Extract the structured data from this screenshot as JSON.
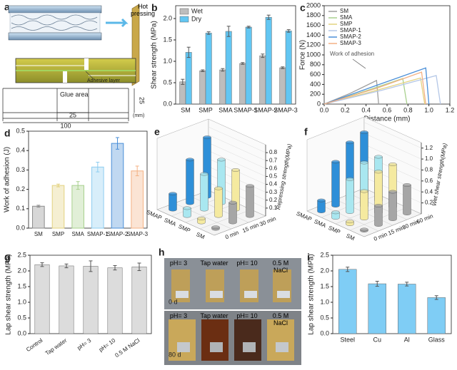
{
  "panel_a": {
    "label": "a",
    "arrow_text": "Hot pressing",
    "layer_text": "Adhesive layer",
    "glue_text": "Glue area",
    "dim_height": "25",
    "dim_glue": "25",
    "dim_length": "100",
    "unit": "(mm)"
  },
  "panel_h": {
    "label": "h",
    "columns": [
      "pH= 3",
      "Tap water",
      "pH= 10",
      "0.5 M NaCl"
    ],
    "rows": [
      "0 d",
      "80 d"
    ]
  },
  "chart_data": [
    {
      "label": "b",
      "type": "bar",
      "ylabel": "Shear strength (MPa)",
      "categories": [
        "SM",
        "SMP",
        "SMA",
        "SMAP-1",
        "SMAP-2",
        "SMAP-3"
      ],
      "ylim": [
        0,
        2.3
      ],
      "yticks": [
        {
          "value": 0,
          "label": "0.0"
        },
        0.5,
        {
          "value": 1,
          "label": "1.0"
        },
        1.5,
        {
          "value": 2,
          "label": "2.0"
        }
      ],
      "legend": "upper left",
      "series": [
        {
          "name": "Wet",
          "color": "#bdbdbd",
          "values": [
            0.52,
            0.78,
            0.8,
            0.95,
            1.13,
            0.85
          ],
          "errors": [
            0.06,
            0.02,
            0.03,
            0.02,
            0.04,
            0.02
          ]
        },
        {
          "name": "Dry",
          "color": "#62c6f2",
          "values": [
            1.21,
            1.66,
            1.7,
            1.8,
            2.03,
            1.71
          ],
          "errors": [
            0.12,
            0.03,
            0.12,
            0.02,
            0.05,
            0.03
          ]
        }
      ]
    },
    {
      "label": "c",
      "type": "line",
      "xlabel": "Distance (mm)",
      "ylabel": "Force (N)",
      "annotation": "Work of adhesion",
      "xlim": [
        0,
        1.2
      ],
      "xticks": [
        {
          "value": 0,
          "label": "0.0"
        },
        0.2,
        0.4,
        0.6,
        0.8,
        {
          "value": 1,
          "label": "1.0"
        },
        1.2
      ],
      "ylim": [
        0,
        2000
      ],
      "yticks": [
        0,
        200,
        400,
        600,
        800,
        1000,
        1200,
        1400,
        1600,
        1800,
        2000
      ],
      "legend": "upper left",
      "series": [
        {
          "name": "SM",
          "color": "#9e9e9e",
          "x": [
            0,
            0.25,
            0.5,
            0.52
          ],
          "values": [
            0,
            220,
            480,
            0
          ]
        },
        {
          "name": "SMA",
          "color": "#a8d08d",
          "x": [
            0,
            0.4,
            0.75,
            0.79
          ],
          "values": [
            0,
            270,
            520,
            0
          ]
        },
        {
          "name": "SMP",
          "color": "#e3d27f",
          "x": [
            0,
            0.45,
            0.92,
            0.96
          ],
          "values": [
            0,
            250,
            530,
            0
          ]
        },
        {
          "name": "SMAP-1",
          "color": "#b4c7e7",
          "x": [
            0,
            0.55,
            1.07,
            1.11
          ],
          "values": [
            0,
            280,
            580,
            0
          ]
        },
        {
          "name": "SMAP-2",
          "color": "#4a8fd8",
          "x": [
            0,
            0.5,
            0.97,
            1.0
          ],
          "values": [
            0,
            380,
            735,
            0
          ]
        },
        {
          "name": "SMAP-3",
          "color": "#f4b183",
          "x": [
            0,
            0.5,
            0.93,
            0.97
          ],
          "values": [
            0,
            320,
            650,
            0
          ]
        }
      ]
    },
    {
      "label": "d",
      "type": "bar",
      "ylabel": "Work of adhesion (J)",
      "categories": [
        "SM",
        "SMP",
        "SMA",
        "SMAP-1",
        "SMAP-2",
        "SMAP-3"
      ],
      "values": [
        0.113,
        0.22,
        0.22,
        0.315,
        0.437,
        0.295
      ],
      "errors": [
        0.005,
        0.007,
        0.02,
        0.025,
        0.03,
        0.025
      ],
      "colors": [
        "#8c8c8c",
        "#e3d27f",
        "#a8d08d",
        "#8ecdf0",
        "#4a8fd8",
        "#f4b183"
      ],
      "ylim": [
        0,
        0.5
      ],
      "yticks": [
        {
          "value": 0,
          "label": "0.0"
        },
        0.1,
        0.2,
        0.3,
        0.4,
        0.5
      ]
    },
    {
      "label": "e",
      "type": "bar3d",
      "zlabel": "Repressing strength(MPa)",
      "categories": [
        "0 min",
        "15 min",
        "30 min"
      ],
      "zlim": [
        0,
        0.9
      ],
      "zticks": [
        0.1,
        0.2,
        0.3,
        0.4,
        0.5,
        0.6,
        0.7,
        0.8
      ],
      "series": [
        {
          "name": "SM",
          "color": "#a6a6a6",
          "values": [
            0.02,
            0.25,
            0.38
          ]
        },
        {
          "name": "SMP",
          "color": "#f5eaa0",
          "values": [
            0.05,
            0.35,
            0.5
          ]
        },
        {
          "name": "SMA",
          "color": "#a9e7f0",
          "values": [
            0.1,
            0.45,
            0.55
          ]
        },
        {
          "name": "SMAP",
          "color": "#2e8fd8",
          "values": [
            0.2,
            0.55,
            0.75
          ]
        }
      ]
    },
    {
      "label": "f",
      "type": "bar3d",
      "zlabel": "Wet shear strength(MPa)",
      "categories": [
        "0 min",
        "15 min",
        "30 min",
        "60 min"
      ],
      "zlim": [
        0,
        1.3
      ],
      "zticks": [
        0.2,
        0.4,
        0.6,
        0.8,
        {
          "value": 1,
          "label": "1.0"
        },
        1.2
      ],
      "series": [
        {
          "name": "SM",
          "color": "#a6a6a6",
          "values": [
            0.02,
            0.35,
            0.5,
            0.52
          ]
        },
        {
          "name": "SMP",
          "color": "#f5eaa0",
          "values": [
            0.05,
            0.5,
            0.75,
            0.78
          ]
        },
        {
          "name": "SMA",
          "color": "#a9e7f0",
          "values": [
            0.1,
            0.6,
            0.8,
            0.8
          ]
        },
        {
          "name": "SMAP",
          "color": "#2e8fd8",
          "values": [
            0.2,
            0.8,
            1.05,
            1.13
          ]
        }
      ]
    },
    {
      "label": "g",
      "type": "bar",
      "ylabel": "Lap shear strength (MPa)",
      "categories": [
        "Control",
        "Tap water",
        "pH= 3",
        "pH= 10",
        "0.5 M NaCl"
      ],
      "values": [
        2.2,
        2.16,
        2.15,
        2.1,
        2.13
      ],
      "errors": [
        0.06,
        0.06,
        0.17,
        0.07,
        0.12
      ],
      "color": "#dcdcdc",
      "ylim": [
        0,
        2.5
      ],
      "yticks": [
        {
          "value": 0,
          "label": "0.0"
        },
        0.5,
        {
          "value": 1,
          "label": "1.0"
        },
        1.5,
        {
          "value": 2,
          "label": "2.0"
        },
        2.5
      ]
    },
    {
      "label": "i",
      "type": "bar",
      "ylabel": "Lap shear strength (MPa)",
      "categories": [
        "Steel",
        "Cu",
        "Al",
        "Glass"
      ],
      "values": [
        2.05,
        1.59,
        1.58,
        1.15
      ],
      "errors": [
        0.07,
        0.08,
        0.06,
        0.06
      ],
      "color": "#7fcdf5",
      "ylim": [
        0,
        2.5
      ],
      "yticks": [
        {
          "value": 0,
          "label": "0.0"
        },
        0.5,
        {
          "value": 1,
          "label": "1.0"
        },
        1.5,
        {
          "value": 2,
          "label": "2.0"
        },
        2.5
      ]
    }
  ]
}
